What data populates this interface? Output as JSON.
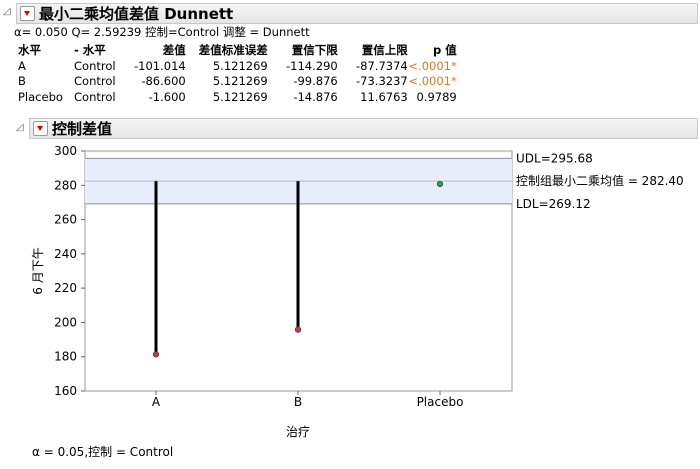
{
  "section1": {
    "title": "最小二乘均值差值 Dunnett",
    "subtitle": "α= 0.050 Q= 2.59239  控制=Control  调整 = Dunnett",
    "columns": [
      "水平",
      "- 水平",
      "差值",
      "差值标准误差",
      "置信下限",
      "置信上限",
      "p 值"
    ],
    "rows": [
      [
        "A",
        "Control",
        "-101.014",
        "5.121269",
        "-114.290",
        "-87.7374",
        "<.0001*"
      ],
      [
        "B",
        "Control",
        "-86.600",
        "5.121269",
        "-99.876",
        "-73.3237",
        "<.0001*"
      ],
      [
        "Placebo",
        "Control",
        "-1.600",
        "5.121269",
        "-14.876",
        "11.6763",
        "0.9789"
      ]
    ]
  },
  "section2": {
    "title": "控制差值",
    "footnote": "α = 0.05,控制 = Control"
  },
  "colors": {
    "significant": "#e07a1a",
    "band": "#e8edfc",
    "sig_point": "#e0303a",
    "nonsig_point": "#20a040"
  },
  "chart_data": {
    "type": "scatter",
    "categories": [
      "A",
      "B",
      "Placebo"
    ],
    "values": [
      181.386,
      195.8,
      280.8
    ],
    "control_mean": 282.4,
    "udl": 295.68,
    "ldl": 269.12,
    "labels": {
      "udl": "UDL=295.68",
      "mean": "控制组最小二乘均值 = 282.40",
      "ldl": "LDL=269.12"
    },
    "ylabel": "6 月下午",
    "xlabel": "治疗",
    "ylim": [
      160,
      300
    ],
    "yticks": [
      160,
      180,
      200,
      220,
      240,
      260,
      280,
      300
    ]
  }
}
